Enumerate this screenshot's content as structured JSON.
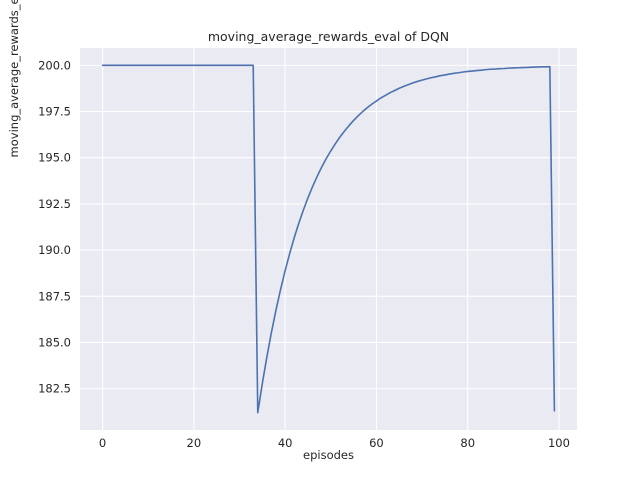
{
  "figure": {
    "title": "moving_average_rewards_eval of DQN",
    "xlabel": "episodes",
    "ylabel": "moving_average_rewards_eval"
  },
  "chart_data": {
    "type": "line",
    "title": "moving_average_rewards_eval of DQN",
    "xlabel": "episodes",
    "ylabel": "moving_average_rewards_eval",
    "legend": false,
    "grid": true,
    "plot_bg_color": "#eaeaf2",
    "grid_color": "#ffffff",
    "line_color": "#4c72b0",
    "tick_label_color": "#262626",
    "xlim": [
      -4.95,
      103.95
    ],
    "ylim": [
      180.26,
      200.94
    ],
    "xtick_values": [
      0,
      20,
      40,
      60,
      80,
      100
    ],
    "xtick_labels": [
      "0",
      "20",
      "40",
      "60",
      "80",
      "100"
    ],
    "ytick_values": [
      182.5,
      185.0,
      187.5,
      190.0,
      192.5,
      195.0,
      197.5,
      200.0
    ],
    "ytick_labels": [
      "182.5",
      "185.0",
      "187.5",
      "190.0",
      "192.5",
      "195.0",
      "197.5",
      "200.0"
    ],
    "x_start": 0,
    "x_step": 1,
    "y": [
      200,
      200,
      200,
      200,
      200,
      200,
      200,
      200,
      200,
      200,
      200,
      200,
      200,
      200,
      200,
      200,
      200,
      200,
      200,
      200,
      200,
      200,
      200,
      200,
      200,
      200,
      200,
      200,
      200,
      200,
      200,
      200,
      200,
      200,
      181.2,
      182.78,
      184.22,
      185.55,
      186.76,
      187.87,
      188.89,
      189.82,
      190.68,
      191.46,
      192.17,
      192.83,
      193.43,
      193.98,
      194.49,
      194.95,
      195.37,
      195.76,
      196.12,
      196.44,
      196.74,
      197.02,
      197.27,
      197.5,
      197.71,
      197.9,
      198.07,
      198.24,
      198.38,
      198.52,
      198.64,
      198.76,
      198.86,
      198.96,
      199.05,
      199.13,
      199.2,
      199.27,
      199.33,
      199.38,
      199.44,
      199.48,
      199.53,
      199.57,
      199.6,
      199.64,
      199.67,
      199.69,
      199.72,
      199.74,
      199.77,
      199.79,
      199.8,
      199.82,
      199.83,
      199.85,
      199.86,
      199.87,
      199.88,
      199.89,
      199.9,
      199.91,
      199.92,
      199.92,
      199.93,
      181.3
    ]
  }
}
